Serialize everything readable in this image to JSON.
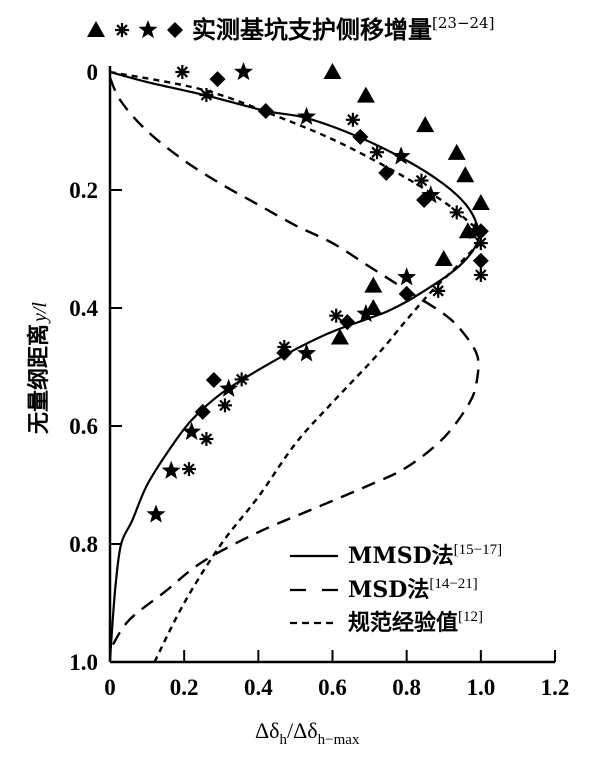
{
  "chart_data": {
    "type": "scatter",
    "title": "",
    "xlabel_parts": {
      "main": "Δδ",
      "sub1": "h",
      "sep": "/Δδ",
      "sub2": "h−max"
    },
    "xlabel": "Δδh/Δδh−max",
    "ylabel": "无量纲距离 y/l",
    "ylabel_cn": "无量纲距离",
    "ylabel_var": "y/l",
    "xlim": [
      0,
      1.2
    ],
    "ylim": [
      0,
      1.0
    ],
    "y_inverted": true,
    "grid": false,
    "xticks": [
      0,
      0.2,
      0.4,
      0.6,
      0.8,
      1.0,
      1.2
    ],
    "xtick_labels": [
      "0",
      "0.2",
      "0.4",
      "0.6",
      "0.8",
      "1.0",
      "1.2"
    ],
    "yticks": [
      0,
      0.2,
      0.4,
      0.6,
      0.8,
      1.0
    ],
    "ytick_labels": [
      "0",
      "0.2",
      "0.4",
      "0.6",
      "0.8",
      "1.0"
    ],
    "top_legend": {
      "text": "实测基坑支护侧移增量",
      "ref": "[23−24]",
      "markers": [
        "triangle",
        "asterisk",
        "star",
        "diamond"
      ],
      "placement": "top"
    },
    "legend": {
      "placement": "bottom-right",
      "entries": [
        {
          "name": "MMSD法",
          "ref": "[15−17]",
          "style": "solid"
        },
        {
          "name": "MSD法",
          "ref": "[14−21]",
          "style": "long-dash"
        },
        {
          "name": "规范经验值",
          "ref": "[12]",
          "style": "short-dash"
        }
      ]
    },
    "lines": [
      {
        "name": "MMSD法",
        "style": "solid",
        "points": [
          [
            0,
            0
          ],
          [
            0.1,
            0.017
          ],
          [
            0.26,
            0.04
          ],
          [
            0.42,
            0.066
          ],
          [
            0.53,
            0.078
          ],
          [
            0.67,
            0.11
          ],
          [
            0.8,
            0.15
          ],
          [
            0.9,
            0.19
          ],
          [
            0.96,
            0.225
          ],
          [
            0.99,
            0.26
          ],
          [
            0.99,
            0.29
          ],
          [
            0.94,
            0.33
          ],
          [
            0.85,
            0.37
          ],
          [
            0.75,
            0.405
          ],
          [
            0.6,
            0.44
          ],
          [
            0.5,
            0.47
          ],
          [
            0.4,
            0.505
          ],
          [
            0.3,
            0.545
          ],
          [
            0.22,
            0.59
          ],
          [
            0.16,
            0.64
          ],
          [
            0.1,
            0.7
          ],
          [
            0.06,
            0.76
          ],
          [
            0.03,
            0.8
          ],
          [
            0.015,
            0.87
          ],
          [
            0.005,
            0.95
          ],
          [
            0,
            1.0
          ]
        ]
      },
      {
        "name": "MSD法",
        "style": "long-dash",
        "points": [
          [
            0,
            0.01
          ],
          [
            0.03,
            0.05
          ],
          [
            0.1,
            0.1
          ],
          [
            0.2,
            0.15
          ],
          [
            0.3,
            0.19
          ],
          [
            0.4,
            0.225
          ],
          [
            0.5,
            0.26
          ],
          [
            0.6,
            0.29
          ],
          [
            0.7,
            0.33
          ],
          [
            0.8,
            0.37
          ],
          [
            0.9,
            0.41
          ],
          [
            0.95,
            0.44
          ],
          [
            0.99,
            0.48
          ],
          [
            0.99,
            0.52
          ],
          [
            0.97,
            0.56
          ],
          [
            0.9,
            0.62
          ],
          [
            0.8,
            0.67
          ],
          [
            0.7,
            0.7
          ],
          [
            0.55,
            0.74
          ],
          [
            0.4,
            0.78
          ],
          [
            0.25,
            0.83
          ],
          [
            0.15,
            0.88
          ],
          [
            0.05,
            0.93
          ],
          [
            0,
            0.98
          ]
        ]
      },
      {
        "name": "规范经验值",
        "style": "short-dash",
        "points": [
          [
            0,
            0
          ],
          [
            0.25,
            0.03
          ],
          [
            0.45,
            0.075
          ],
          [
            0.62,
            0.12
          ],
          [
            0.8,
            0.18
          ],
          [
            0.9,
            0.22
          ],
          [
            0.96,
            0.25
          ],
          [
            1.0,
            0.28
          ],
          [
            0.95,
            0.32
          ],
          [
            0.87,
            0.37
          ],
          [
            0.8,
            0.42
          ],
          [
            0.72,
            0.48
          ],
          [
            0.6,
            0.56
          ],
          [
            0.5,
            0.63
          ],
          [
            0.4,
            0.72
          ],
          [
            0.3,
            0.8
          ],
          [
            0.2,
            0.9
          ],
          [
            0.12,
            1.0
          ]
        ]
      }
    ],
    "series": [
      {
        "name": "triangle",
        "marker": "triangle",
        "points": [
          [
            0.6,
            0.0
          ],
          [
            0.69,
            0.04
          ],
          [
            0.85,
            0.09
          ],
          [
            0.935,
            0.137
          ],
          [
            0.958,
            0.175
          ],
          [
            1.0,
            0.222
          ],
          [
            0.965,
            0.27
          ],
          [
            0.9,
            0.317
          ],
          [
            0.71,
            0.362
          ],
          [
            0.71,
            0.4
          ],
          [
            0.62,
            0.45
          ]
        ]
      },
      {
        "name": "asterisk",
        "marker": "asterisk",
        "points": [
          [
            0.195,
            0.0
          ],
          [
            0.26,
            0.039
          ],
          [
            0.655,
            0.081
          ],
          [
            0.72,
            0.136
          ],
          [
            0.84,
            0.184
          ],
          [
            0.935,
            0.238
          ],
          [
            1.0,
            0.29
          ],
          [
            1.0,
            0.344
          ],
          [
            0.885,
            0.371
          ],
          [
            0.61,
            0.413
          ],
          [
            0.47,
            0.466
          ],
          [
            0.355,
            0.521
          ],
          [
            0.31,
            0.565
          ],
          [
            0.26,
            0.622
          ],
          [
            0.213,
            0.673
          ]
        ]
      },
      {
        "name": "star",
        "marker": "star",
        "points": [
          [
            0.36,
            0.0
          ],
          [
            0.53,
            0.076
          ],
          [
            0.785,
            0.143
          ],
          [
            0.865,
            0.209
          ],
          [
            0.985,
            0.27
          ],
          [
            0.8,
            0.348
          ],
          [
            0.69,
            0.41
          ],
          [
            0.53,
            0.477
          ],
          [
            0.32,
            0.537
          ],
          [
            0.22,
            0.61
          ],
          [
            0.165,
            0.676
          ],
          [
            0.124,
            0.75
          ]
        ]
      },
      {
        "name": "diamond",
        "marker": "diamond",
        "points": [
          [
            0.29,
            0.012
          ],
          [
            0.42,
            0.066
          ],
          [
            0.675,
            0.11
          ],
          [
            0.745,
            0.171
          ],
          [
            0.847,
            0.217
          ],
          [
            1.0,
            0.27
          ],
          [
            1.0,
            0.32
          ],
          [
            0.8,
            0.376
          ],
          [
            0.64,
            0.424
          ],
          [
            0.47,
            0.476
          ],
          [
            0.28,
            0.522
          ],
          [
            0.25,
            0.576
          ]
        ]
      }
    ]
  }
}
